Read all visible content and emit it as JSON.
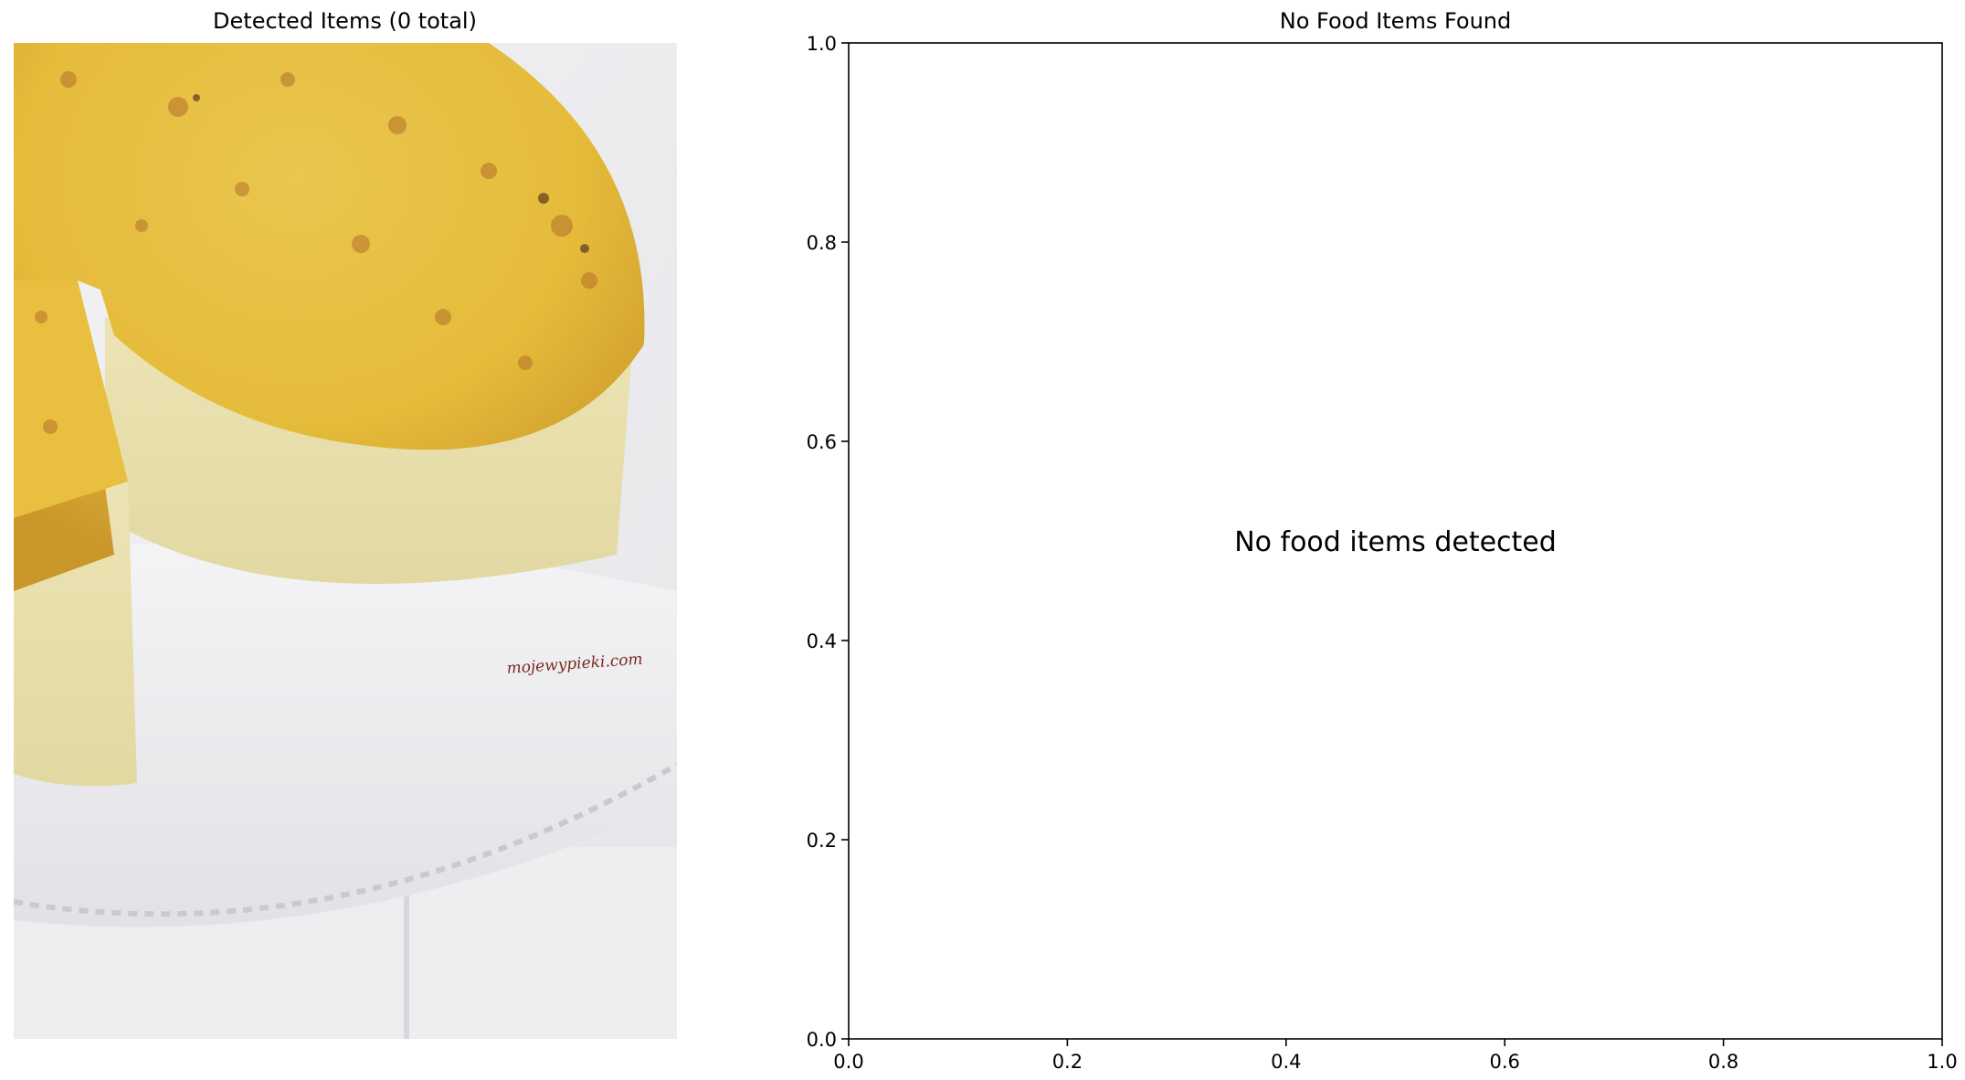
{
  "left_panel": {
    "title": "Detected Items (0 total)",
    "photo_subject": "cake-photo",
    "watermark": "mojewypieki.com"
  },
  "chart_data": {
    "type": "scatter",
    "title": "No Food Items Found",
    "xlabel": "",
    "ylabel": "",
    "xlim": [
      0.0,
      1.0
    ],
    "ylim": [
      0.0,
      1.0
    ],
    "xticks": [
      "0.0",
      "0.2",
      "0.4",
      "0.6",
      "0.8",
      "1.0"
    ],
    "yticks": [
      "0.0",
      "0.2",
      "0.4",
      "0.6",
      "0.8",
      "1.0"
    ],
    "series": [],
    "annotations": [
      {
        "text": "No food items detected",
        "x": 0.5,
        "y": 0.5
      }
    ],
    "grid": false
  }
}
